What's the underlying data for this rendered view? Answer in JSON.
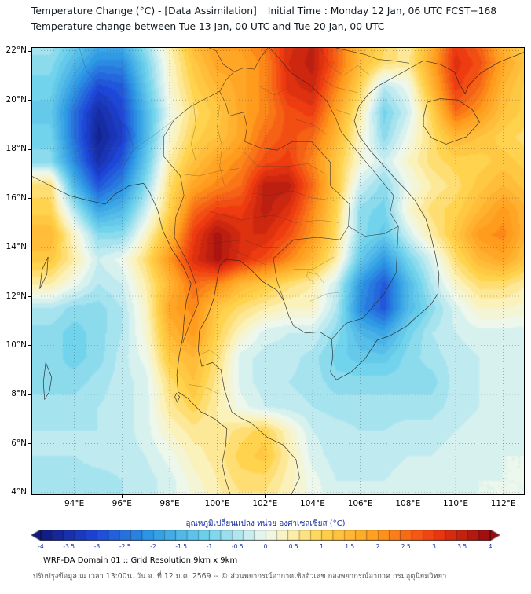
{
  "title": {
    "line1": "Temperature Change (°C) - [Data Assimilation] _ Initial Time : Monday 12 Jan, 06 UTC FCST+168",
    "line2": "Temperature change between Tue 13 Jan, 00 UTC and Tue 20 Jan, 00 UTC"
  },
  "axes": {
    "lon_range": [
      92.2,
      112.9
    ],
    "lat_range": [
      3.9,
      22.15
    ],
    "x_ticks": [
      {
        "label": "94°E",
        "lon": 94
      },
      {
        "label": "96°E",
        "lon": 96
      },
      {
        "label": "98°E",
        "lon": 98
      },
      {
        "label": "100°E",
        "lon": 100
      },
      {
        "label": "102°E",
        "lon": 102
      },
      {
        "label": "104°E",
        "lon": 104
      },
      {
        "label": "106°E",
        "lon": 106
      },
      {
        "label": "108°E",
        "lon": 108
      },
      {
        "label": "110°E",
        "lon": 110
      },
      {
        "label": "112°E",
        "lon": 112
      }
    ],
    "y_ticks": [
      {
        "label": "22°N",
        "lat": 22
      },
      {
        "label": "20°N",
        "lat": 20
      },
      {
        "label": "18°N",
        "lat": 18
      },
      {
        "label": "16°N",
        "lat": 16
      },
      {
        "label": "14°N",
        "lat": 14
      },
      {
        "label": "12°N",
        "lat": 12
      },
      {
        "label": "10°N",
        "lat": 10
      },
      {
        "label": "8°N",
        "lat": 8
      },
      {
        "label": "6°N",
        "lat": 6
      },
      {
        "label": "4°N",
        "lat": 4
      }
    ]
  },
  "colorbar": {
    "title": "อุณหภูมิเปลี่ยนแปลง หน่วย องศาเซลเซียส (°C)",
    "min": -4,
    "max": 4,
    "step": 0.2,
    "tick_labels": [
      "-4",
      "-3.5",
      "-3",
      "-2.5",
      "-2",
      "-1.5",
      "-1",
      "-0.5",
      "0",
      "0.5",
      "1",
      "1.5",
      "2",
      "2.5",
      "3",
      "3.5",
      "4"
    ],
    "stops": [
      [
        -4,
        "#111a7e"
      ],
      [
        -3,
        "#1e46d8"
      ],
      [
        -2,
        "#2f9be4"
      ],
      [
        -1,
        "#72d4ec"
      ],
      [
        -0.4,
        "#bfeaf0"
      ],
      [
        0,
        "#edf7ec"
      ],
      [
        0.4,
        "#fbf2bb"
      ],
      [
        1,
        "#ffd34d"
      ],
      [
        2,
        "#ff9b1d"
      ],
      [
        3,
        "#ef3b10"
      ],
      [
        4,
        "#9a0a10"
      ]
    ]
  },
  "footer": {
    "line1": "WRF-DA Domain 01 :: Grid Resolution 9km x 9km",
    "line2": "ปรับปรุงข้อมูล ณ เวลา 13:00น. วัน จ. ที่ 12 ม.ค. 2569 -- © ส่วนพยากรณ์อากาศเชิงตัวเลข กองพยากรณ์อากาศ กรมอุตุนิยมวิทยา"
  },
  "chart_data": {
    "type": "heatmap",
    "title": "Temperature change (°C) between Tue 13 Jan 00 UTC and Tue 20 Jan 00 UTC",
    "units": "°C",
    "value_range": [
      -4,
      4
    ],
    "lon_start": 93,
    "lon_step": 1,
    "lat_start": 22.5,
    "lat_step": -1,
    "values": [
      [
        -0.5,
        -1.0,
        -1.5,
        -1.5,
        -0.5,
        0.5,
        1.5,
        2.0,
        2.0,
        2.5,
        3.2,
        3.5,
        2.5,
        1.5,
        1.0,
        0.5,
        1.5,
        3.0,
        2.5,
        1.5,
        1.0
      ],
      [
        -0.8,
        -1.5,
        -2.2,
        -2.2,
        -1.0,
        0.3,
        1.2,
        1.8,
        1.8,
        2.2,
        3.3,
        3.6,
        2.6,
        1.4,
        0.8,
        0.6,
        1.8,
        3.2,
        2.8,
        1.8,
        1.2
      ],
      [
        -1.0,
        -2.0,
        -3.0,
        -2.8,
        -1.2,
        0.2,
        1.0,
        1.5,
        1.8,
        2.2,
        3.2,
        3.4,
        2.2,
        1.0,
        -0.5,
        0.0,
        1.5,
        3.0,
        2.5,
        1.5,
        1.0
      ],
      [
        -1.2,
        -2.5,
        -3.6,
        -3.0,
        -1.5,
        0.0,
        0.8,
        1.2,
        1.8,
        2.2,
        2.8,
        3.0,
        1.8,
        0.5,
        -1.0,
        -0.3,
        1.0,
        2.5,
        2.0,
        1.3,
        1.0
      ],
      [
        -1.0,
        -2.5,
        -3.8,
        -3.2,
        -1.5,
        0.2,
        1.0,
        1.3,
        1.8,
        2.5,
        2.8,
        2.5,
        1.5,
        0.3,
        -0.8,
        0.0,
        0.8,
        1.5,
        1.3,
        1.0,
        0.8
      ],
      [
        -0.8,
        -2.2,
        -3.5,
        -2.8,
        -1.2,
        0.5,
        1.3,
        1.8,
        2.2,
        2.8,
        3.0,
        2.2,
        1.2,
        0.2,
        -0.3,
        0.3,
        0.8,
        1.0,
        1.0,
        1.2,
        1.0
      ],
      [
        0.8,
        -1.5,
        -2.8,
        -2.2,
        -0.8,
        0.8,
        1.8,
        2.2,
        2.5,
        3.6,
        3.6,
        2.5,
        1.2,
        -0.3,
        -0.8,
        0.0,
        0.5,
        0.8,
        1.2,
        1.5,
        1.2
      ],
      [
        1.0,
        -0.5,
        -1.8,
        -1.5,
        -0.3,
        1.0,
        2.5,
        3.0,
        3.0,
        3.6,
        3.2,
        2.2,
        1.0,
        -0.8,
        -1.0,
        0.2,
        0.8,
        1.0,
        1.5,
        2.0,
        1.5
      ],
      [
        1.5,
        0.3,
        -0.8,
        -0.8,
        0.3,
        1.5,
        3.0,
        3.8,
        3.3,
        3.3,
        2.8,
        2.0,
        0.8,
        -0.8,
        -1.2,
        -0.3,
        0.5,
        1.2,
        2.0,
        2.2,
        1.5
      ],
      [
        1.2,
        0.5,
        -0.3,
        0.0,
        0.8,
        2.0,
        3.2,
        3.8,
        3.2,
        2.8,
        2.2,
        1.5,
        0.5,
        -1.2,
        -2.0,
        -1.0,
        -0.2,
        0.8,
        1.5,
        1.8,
        1.2
      ],
      [
        0.5,
        0.0,
        -0.5,
        -0.3,
        0.5,
        1.5,
        2.5,
        2.2,
        1.5,
        1.2,
        0.8,
        0.5,
        -0.3,
        -2.0,
        -2.8,
        -1.5,
        -0.5,
        0.3,
        0.8,
        0.8,
        0.5
      ],
      [
        -0.5,
        -0.8,
        -0.8,
        -0.5,
        0.3,
        1.8,
        2.2,
        1.2,
        0.8,
        0.5,
        0.3,
        0.3,
        -0.5,
        -2.2,
        -2.8,
        -1.5,
        -0.8,
        -0.2,
        0.3,
        0.3,
        0.2
      ],
      [
        -0.8,
        -1.0,
        -0.8,
        -0.5,
        0.2,
        1.5,
        2.0,
        1.0,
        0.3,
        -0.2,
        -0.3,
        -0.3,
        -0.8,
        -1.5,
        -1.8,
        -1.0,
        -0.5,
        -0.3,
        -0.2,
        -0.2,
        -0.2
      ],
      [
        -0.8,
        -1.0,
        -0.8,
        -0.4,
        0.0,
        1.2,
        1.5,
        0.8,
        -0.2,
        -0.4,
        -0.4,
        -0.6,
        -1.0,
        -1.2,
        -1.2,
        -0.8,
        -0.6,
        -0.4,
        -0.3,
        -0.3,
        -0.3
      ],
      [
        -0.8,
        -0.8,
        -0.6,
        -0.4,
        -0.2,
        0.8,
        1.3,
        0.6,
        -0.2,
        -0.4,
        -0.5,
        -0.6,
        -0.8,
        -0.8,
        -0.8,
        -0.8,
        -0.8,
        -0.4,
        -0.3,
        -0.2,
        -0.2
      ],
      [
        -0.6,
        -0.6,
        -0.5,
        -0.4,
        -0.2,
        0.6,
        1.0,
        0.5,
        0.0,
        -0.3,
        -0.4,
        -0.5,
        -0.6,
        -0.6,
        -0.6,
        -0.6,
        -0.6,
        -0.4,
        -0.3,
        -0.2,
        -0.2
      ],
      [
        -0.5,
        -0.5,
        -0.5,
        -0.4,
        -0.2,
        0.3,
        0.6,
        0.5,
        0.8,
        1.0,
        0.3,
        -0.3,
        -0.4,
        -0.5,
        -0.5,
        -0.4,
        -0.4,
        -0.3,
        -0.2,
        -0.2,
        -0.2
      ],
      [
        -0.5,
        -0.5,
        -0.4,
        -0.4,
        -0.3,
        0.0,
        0.4,
        0.6,
        1.0,
        1.2,
        0.5,
        -0.2,
        -0.4,
        -0.4,
        -0.4,
        -0.3,
        -0.3,
        -0.2,
        -0.2,
        -0.1,
        -0.1
      ],
      [
        -0.6,
        -0.6,
        -0.6,
        -0.5,
        -0.4,
        -0.2,
        0.2,
        0.5,
        0.8,
        0.8,
        0.4,
        0.0,
        -0.3,
        -0.3,
        -0.3,
        -0.2,
        -0.2,
        -0.2,
        -0.1,
        -0.1,
        -0.1
      ],
      [
        -0.6,
        -0.6,
        -0.6,
        -0.5,
        -0.4,
        -0.2,
        0.1,
        0.4,
        0.6,
        0.6,
        0.3,
        0.0,
        -0.2,
        -0.2,
        -0.2,
        -0.2,
        -0.1,
        -0.1,
        -0.1,
        -0.1,
        -0.1
      ]
    ]
  }
}
